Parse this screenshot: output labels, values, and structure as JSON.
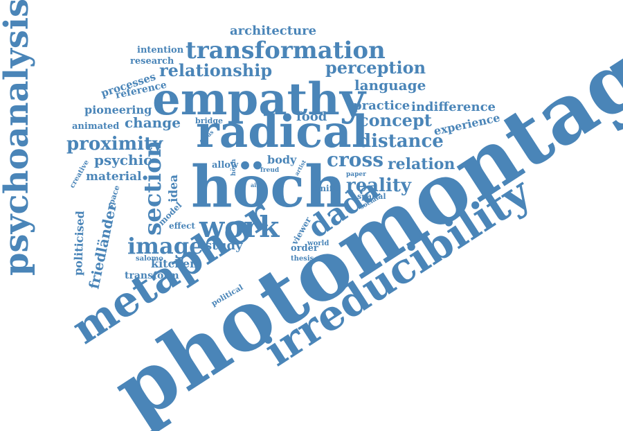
{
  "color": "#4a85b8",
  "words": [
    "photomontage",
    "irreducibility",
    "metaphor",
    "höch",
    "radical",
    "empathy",
    "psychoanalysis",
    "transformation",
    "work",
    "dada",
    "section",
    "image",
    "relationship",
    "perception",
    "architecture",
    "proximity",
    "cross",
    "concept",
    "distance",
    "reality",
    "relation",
    "language",
    "practice",
    "indifference",
    "experience",
    "change",
    "food",
    "psychic",
    "pioneering",
    "material",
    "idea",
    "study",
    "kitchen",
    "friedländer",
    "politicised",
    "transform",
    "processes",
    "reference",
    "research",
    "intention",
    "animated",
    "body",
    "allow",
    "bridge",
    "focus",
    "creative",
    "space",
    "model",
    "effect",
    "salomo",
    "order",
    "thesis",
    "viewer",
    "world",
    "political",
    "knife",
    "spatial",
    "social",
    "paper",
    "artist",
    "freud",
    "aim"
  ]
}
